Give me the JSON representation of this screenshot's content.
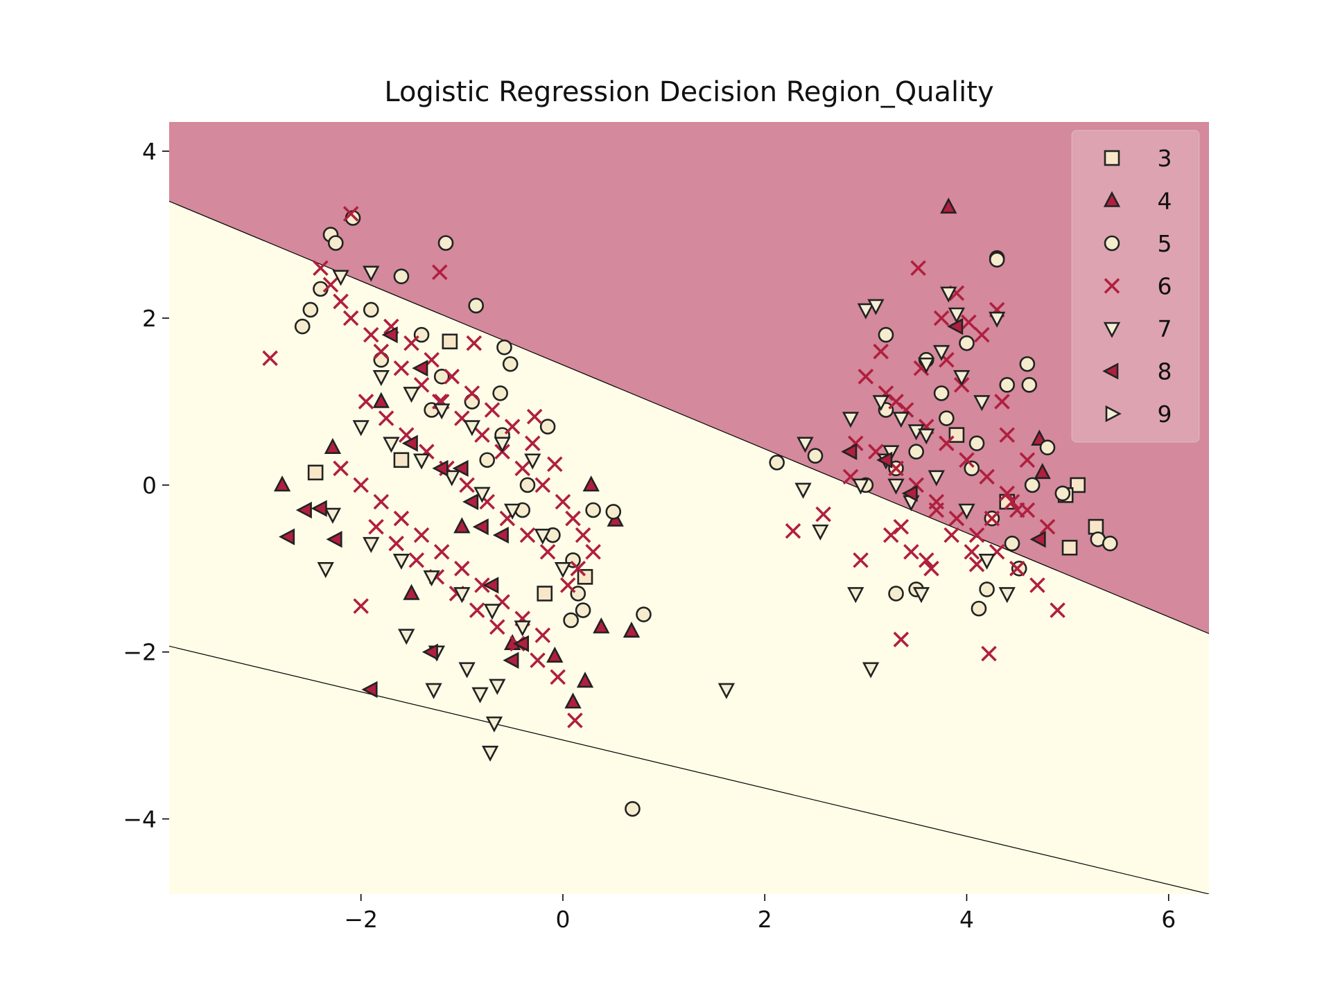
{
  "chart_data": {
    "type": "scatter",
    "title": "Logistic Regression Decision Region_Quality",
    "xlabel": "",
    "ylabel": "",
    "xlim": [
      -3.9,
      6.4
    ],
    "ylim": [
      -4.9,
      4.35
    ],
    "x_ticks": [
      -2,
      0,
      2,
      4,
      6
    ],
    "y_ticks": [
      -4,
      -2,
      0,
      2,
      4
    ],
    "x_tick_labels": [
      "−2",
      "0",
      "2",
      "4",
      "6"
    ],
    "y_tick_labels": [
      "−4",
      "−2",
      "0",
      "2",
      "4"
    ],
    "grid": false,
    "legend_position": "top-right",
    "regions": {
      "upper_color": "#d4899c",
      "lower_color": "#fffde8",
      "boundaries": [
        {
          "from": [
            -3.9,
            3.4
          ],
          "to": [
            6.4,
            -1.78
          ]
        },
        {
          "from": [
            -3.9,
            -1.93
          ],
          "to": [
            6.4,
            -4.9
          ]
        }
      ]
    },
    "series": [
      {
        "name": "3",
        "marker": "square",
        "color": "#f7e7c8",
        "x": [
          5.1,
          5.28,
          5.02,
          4.98,
          -2.45,
          -1.12,
          -0.18,
          -1.6,
          0.22,
          4.4,
          3.9
        ],
        "y": [
          0.0,
          -0.5,
          -0.75,
          -0.12,
          0.15,
          1.72,
          -1.3,
          0.3,
          -1.1,
          -0.2,
          0.6
        ]
      },
      {
        "name": "4",
        "marker": "triangle-up",
        "color": "#b01f3f",
        "x": [
          3.82,
          -2.78,
          0.28,
          0.68,
          0.1,
          0.22,
          0.38,
          0.52,
          -2.28,
          -0.08,
          4.72,
          4.75,
          -1.8,
          -1.0,
          -1.5,
          -0.5
        ],
        "y": [
          3.33,
          0.0,
          0.0,
          -1.75,
          -2.6,
          -2.35,
          -1.7,
          -0.42,
          0.45,
          -2.05,
          0.55,
          0.15,
          1.0,
          -0.5,
          -1.3,
          -1.9
        ]
      },
      {
        "name": "5",
        "marker": "circle",
        "color": "#f5eccd",
        "x": [
          -2.08,
          -2.3,
          -2.25,
          -1.16,
          -0.86,
          -0.58,
          -0.52,
          -0.62,
          -0.15,
          0.5,
          0.8,
          0.69,
          0.2,
          0.08,
          4.3,
          4.3,
          2.12,
          2.5,
          3.3,
          3.5,
          4.52,
          4.62,
          4.8,
          4.2,
          4.12,
          5.3,
          5.42,
          4.95,
          3.2,
          3.6,
          3.8,
          4.0,
          4.6,
          4.1,
          4.4,
          3.3,
          3.0,
          -2.4,
          -2.58,
          -1.6,
          -1.9,
          -1.4,
          -1.2,
          -0.9,
          -0.6,
          -0.35,
          -0.1,
          0.1,
          0.15,
          3.2,
          3.5,
          4.05,
          4.25,
          4.45,
          4.65,
          3.75,
          -2.5,
          -1.8,
          -1.3,
          -0.75,
          -0.4,
          0.3
        ],
        "y": [
          3.2,
          3.0,
          2.9,
          2.9,
          2.15,
          1.65,
          1.45,
          1.1,
          0.7,
          -0.32,
          -1.55,
          -3.88,
          -1.5,
          -1.62,
          2.72,
          2.7,
          0.27,
          0.35,
          -1.3,
          -1.25,
          -1.0,
          1.2,
          0.45,
          -1.25,
          -1.48,
          -0.65,
          -0.7,
          -0.1,
          1.8,
          1.5,
          0.8,
          1.7,
          1.45,
          0.5,
          1.2,
          0.2,
          0.0,
          2.35,
          1.9,
          2.5,
          2.1,
          1.8,
          1.3,
          1.0,
          0.6,
          0.0,
          -0.6,
          -0.9,
          -1.3,
          0.9,
          0.4,
          0.2,
          -0.4,
          -0.7,
          0.0,
          1.1,
          2.1,
          1.5,
          0.9,
          0.3,
          -0.3,
          -0.3
        ]
      },
      {
        "name": "6",
        "marker": "x",
        "color": "#b01f3f",
        "x": [
          -2.9,
          -2.1,
          -1.22,
          -0.88,
          -0.28,
          -0.08,
          -1.22,
          3.35,
          4.22,
          4.9,
          2.28,
          2.58,
          0.12,
          -2.0,
          3.52,
          3.9,
          4.3,
          4.02,
          3.8,
          3.3,
          2.9,
          4.6,
          4.5,
          3.6,
          -2.4,
          -2.3,
          -2.2,
          -2.1,
          -1.9,
          -1.8,
          -1.6,
          -1.4,
          -1.2,
          -1.0,
          -0.8,
          -0.6,
          -0.4,
          -0.2,
          0.0,
          0.1,
          0.2,
          0.3,
          -1.7,
          -1.5,
          -1.3,
          -1.1,
          -0.9,
          -0.7,
          -0.5,
          -0.3,
          -1.95,
          -1.75,
          -1.55,
          -1.35,
          -1.15,
          -0.95,
          -0.75,
          -0.55,
          -0.35,
          -0.15,
          -2.2,
          -2.0,
          -1.8,
          -1.6,
          -1.4,
          -1.2,
          -1.0,
          -0.8,
          -0.6,
          -0.4,
          -0.2,
          0.05,
          0.15,
          -1.85,
          -1.65,
          -1.45,
          -1.25,
          -1.05,
          -0.85,
          -0.65,
          -0.45,
          -0.25,
          -0.05,
          3.0,
          3.2,
          3.4,
          3.6,
          3.8,
          4.0,
          4.2,
          4.4,
          4.6,
          4.8,
          3.1,
          3.3,
          3.5,
          3.7,
          3.9,
          4.1,
          4.3,
          4.5,
          4.7,
          3.25,
          3.45,
          3.65,
          3.85,
          4.05,
          4.25,
          4.45,
          3.15,
          3.55,
          3.95,
          4.35,
          2.85,
          3.75,
          4.15,
          2.95,
          3.35,
          3.7,
          4.1,
          4.4
        ],
        "y": [
          1.52,
          3.25,
          2.55,
          1.7,
          0.82,
          0.25,
          1.0,
          -1.85,
          -2.02,
          -1.5,
          -0.55,
          -0.35,
          -2.82,
          -1.45,
          2.6,
          2.3,
          2.1,
          1.95,
          1.5,
          1.0,
          0.5,
          0.3,
          -0.3,
          -0.9,
          2.6,
          2.4,
          2.2,
          2.0,
          1.8,
          1.6,
          1.4,
          1.2,
          1.0,
          0.8,
          0.6,
          0.4,
          0.2,
          0.0,
          -0.2,
          -0.4,
          -0.6,
          -0.8,
          1.9,
          1.7,
          1.5,
          1.3,
          1.1,
          0.9,
          0.7,
          0.5,
          1.0,
          0.8,
          0.6,
          0.4,
          0.2,
          0.0,
          -0.2,
          -0.4,
          -0.6,
          -0.8,
          0.2,
          0.0,
          -0.2,
          -0.4,
          -0.6,
          -0.8,
          -1.0,
          -1.2,
          -1.4,
          -1.6,
          -1.8,
          -1.2,
          -1.0,
          -0.5,
          -0.7,
          -0.9,
          -1.1,
          -1.3,
          -1.5,
          -1.7,
          -1.9,
          -2.1,
          -2.3,
          1.3,
          1.1,
          0.9,
          0.7,
          0.5,
          0.3,
          0.1,
          -0.1,
          -0.3,
          -0.5,
          0.4,
          0.2,
          0.0,
          -0.2,
          -0.4,
          -0.6,
          -0.8,
          -1.0,
          -1.2,
          -0.6,
          -0.8,
          -1.0,
          -0.6,
          -0.8,
          -0.4,
          -0.2,
          1.6,
          1.4,
          1.2,
          1.0,
          0.1,
          2.0,
          1.8,
          -0.9,
          -0.5,
          -0.3,
          -0.95,
          0.6
        ]
      },
      {
        "name": "7",
        "marker": "triangle-down",
        "color": "#f5efd6",
        "x": [
          -2.2,
          -1.9,
          3.82,
          3.9,
          4.3,
          3.0,
          3.1,
          3.6,
          1.62,
          -0.68,
          -0.72,
          -1.28,
          -0.82,
          -2.35,
          -2.28,
          2.4,
          2.38,
          2.55,
          2.85,
          2.9,
          3.05,
          3.5,
          3.55,
          4.4,
          4.2,
          3.3,
          3.45,
          -2.0,
          -1.7,
          -1.4,
          -1.1,
          -0.8,
          -0.5,
          -0.2,
          0.0,
          -1.9,
          -1.6,
          -1.3,
          -1.0,
          -0.7,
          -0.4,
          -1.8,
          -1.5,
          -1.2,
          -0.9,
          -0.6,
          -0.3,
          -1.55,
          -1.25,
          -0.95,
          -0.65,
          3.15,
          3.35,
          3.6,
          3.75,
          3.95,
          4.15,
          3.2,
          3.7,
          4.0,
          2.95,
          3.25
        ],
        "y": [
          2.5,
          2.55,
          2.3,
          2.05,
          2.0,
          2.1,
          2.15,
          1.45,
          -2.45,
          -2.85,
          -3.2,
          -2.45,
          -2.5,
          -1.0,
          -0.35,
          0.5,
          -0.05,
          -0.55,
          0.8,
          -1.3,
          -2.2,
          0.65,
          -1.3,
          -1.3,
          -0.9,
          0.0,
          -0.2,
          0.7,
          0.5,
          0.3,
          0.1,
          -0.1,
          -0.3,
          -0.6,
          -1.0,
          -0.7,
          -0.9,
          -1.1,
          -1.3,
          -1.5,
          -1.7,
          1.3,
          1.1,
          0.9,
          0.7,
          0.5,
          0.3,
          -1.8,
          -2.0,
          -2.2,
          -2.4,
          1.0,
          0.8,
          0.6,
          1.6,
          1.3,
          1.0,
          0.3,
          0.1,
          -0.3,
          0.0,
          0.4
        ]
      },
      {
        "name": "8",
        "marker": "triangle-left",
        "color": "#b01f3f",
        "x": [
          -1.9,
          -2.72,
          -2.55,
          -2.25,
          -2.4,
          3.9,
          3.2,
          4.72,
          -1.5,
          -1.2,
          -0.9,
          -0.6,
          -0.4,
          -1.7,
          -1.4,
          -1.0,
          -0.7,
          -0.5,
          -1.3,
          -0.8,
          2.85,
          3.45
        ],
        "y": [
          -2.45,
          -0.62,
          -0.3,
          -0.65,
          -0.28,
          1.9,
          0.3,
          -0.65,
          0.5,
          0.2,
          -0.2,
          -0.6,
          -1.9,
          1.8,
          1.4,
          0.2,
          -1.2,
          -2.1,
          -2.0,
          -0.5,
          0.4,
          -0.1
        ]
      },
      {
        "name": "9",
        "marker": "triangle-right",
        "color": "#f5efd6",
        "x": [],
        "y": []
      }
    ]
  }
}
